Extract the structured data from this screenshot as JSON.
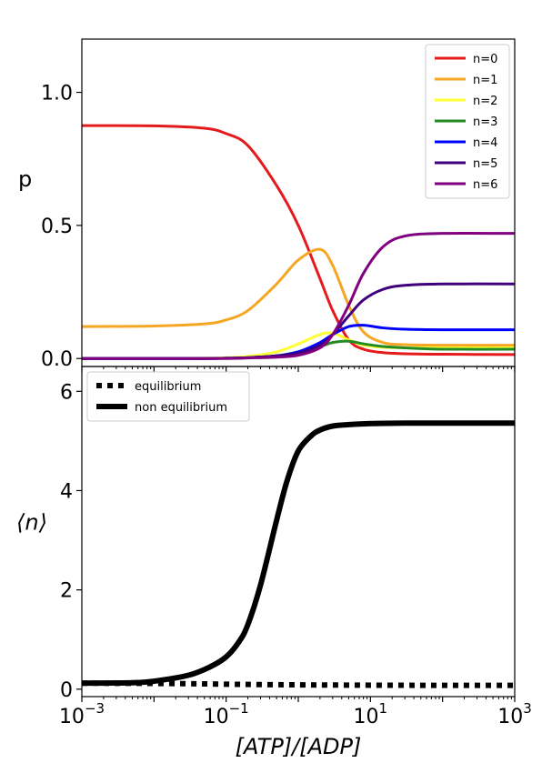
{
  "chart_data": [
    {
      "type": "line",
      "panel": "top",
      "xscale": "log",
      "xlim": [
        0.001,
        1000
      ],
      "ylim": [
        -0.03,
        1.2
      ],
      "yticks": [
        {
          "value": 0.0,
          "label": "0.0"
        },
        {
          "value": 0.5,
          "label": "0.5"
        },
        {
          "value": 1.0,
          "label": "1.0"
        }
      ],
      "ylabel": "p",
      "legend_position": "top-right",
      "x": [
        0.001,
        0.01,
        0.05,
        0.1,
        0.2,
        0.5,
        1,
        2,
        3,
        5,
        8,
        15,
        30,
        100,
        1000
      ],
      "series": [
        {
          "name": "n=0",
          "color": "#e41a1c",
          "values": [
            0.875,
            0.874,
            0.865,
            0.845,
            0.8,
            0.65,
            0.5,
            0.3,
            0.18,
            0.07,
            0.035,
            0.022,
            0.018,
            0.016,
            0.015
          ]
        },
        {
          "name": "n=1",
          "color": "#f5a623",
          "values": [
            0.12,
            0.122,
            0.13,
            0.145,
            0.18,
            0.28,
            0.37,
            0.41,
            0.35,
            0.2,
            0.1,
            0.06,
            0.052,
            0.05,
            0.05
          ]
        },
        {
          "name": "n=2",
          "color": "#ffff33",
          "values": [
            0.0,
            0.0,
            0.001,
            0.003,
            0.008,
            0.025,
            0.055,
            0.09,
            0.095,
            0.07,
            0.05,
            0.042,
            0.04,
            0.04,
            0.04
          ]
        },
        {
          "name": "n=3",
          "color": "#228b22",
          "values": [
            0.0,
            0.0,
            0.0,
            0.001,
            0.003,
            0.01,
            0.025,
            0.045,
            0.06,
            0.065,
            0.055,
            0.045,
            0.04,
            0.035,
            0.035
          ]
        },
        {
          "name": "n=4",
          "color": "#0000ff",
          "values": [
            0.0,
            0.0,
            0.0,
            0.001,
            0.003,
            0.01,
            0.025,
            0.06,
            0.09,
            0.12,
            0.125,
            0.115,
            0.11,
            0.108,
            0.108
          ]
        },
        {
          "name": "n=5",
          "color": "#3f007d",
          "values": [
            0.0,
            0.0,
            0.0,
            0.001,
            0.003,
            0.01,
            0.02,
            0.05,
            0.09,
            0.16,
            0.22,
            0.26,
            0.275,
            0.28,
            0.28
          ]
        },
        {
          "name": "n=6",
          "color": "#800080",
          "values": [
            0.0,
            0.0,
            0.0,
            0.0,
            0.002,
            0.005,
            0.012,
            0.04,
            0.09,
            0.2,
            0.32,
            0.42,
            0.46,
            0.47,
            0.47
          ]
        }
      ]
    },
    {
      "type": "line",
      "panel": "bottom",
      "xscale": "log",
      "xlim": [
        0.001,
        1000
      ],
      "ylim": [
        -0.15,
        6.5
      ],
      "xticks": [
        {
          "value": 0.001,
          "base": "10",
          "exp": "−3"
        },
        {
          "value": 0.1,
          "base": "10",
          "exp": "−1"
        },
        {
          "value": 10,
          "base": "10",
          "exp": "1"
        },
        {
          "value": 1000,
          "base": "10",
          "exp": "3"
        }
      ],
      "yticks": [
        {
          "value": 0,
          "label": "0"
        },
        {
          "value": 2,
          "label": "2"
        },
        {
          "value": 4,
          "label": "4"
        },
        {
          "value": 6,
          "label": "6"
        }
      ],
      "ylabel": "⟨n⟩",
      "xlabel": "[ATP]/[ADP]",
      "legend_position": "top-left",
      "x": [
        0.001,
        0.005,
        0.01,
        0.03,
        0.06,
        0.1,
        0.15,
        0.2,
        0.3,
        0.5,
        0.7,
        1,
        1.5,
        2,
        3,
        5,
        10,
        30,
        100,
        1000
      ],
      "series": [
        {
          "name": "equilibrium",
          "color": "#000000",
          "dash": "dotted",
          "values": [
            0.12,
            0.118,
            0.115,
            0.11,
            0.105,
            0.1,
            0.097,
            0.095,
            0.092,
            0.09,
            0.088,
            0.087,
            0.085,
            0.084,
            0.083,
            0.082,
            0.08,
            0.078,
            0.077,
            0.076
          ]
        },
        {
          "name": "non equilibrium",
          "color": "#000000",
          "dash": "solid",
          "values": [
            0.12,
            0.13,
            0.16,
            0.28,
            0.45,
            0.65,
            0.95,
            1.3,
            2.1,
            3.4,
            4.2,
            4.8,
            5.1,
            5.22,
            5.3,
            5.33,
            5.35,
            5.36,
            5.36,
            5.36
          ]
        }
      ]
    }
  ]
}
